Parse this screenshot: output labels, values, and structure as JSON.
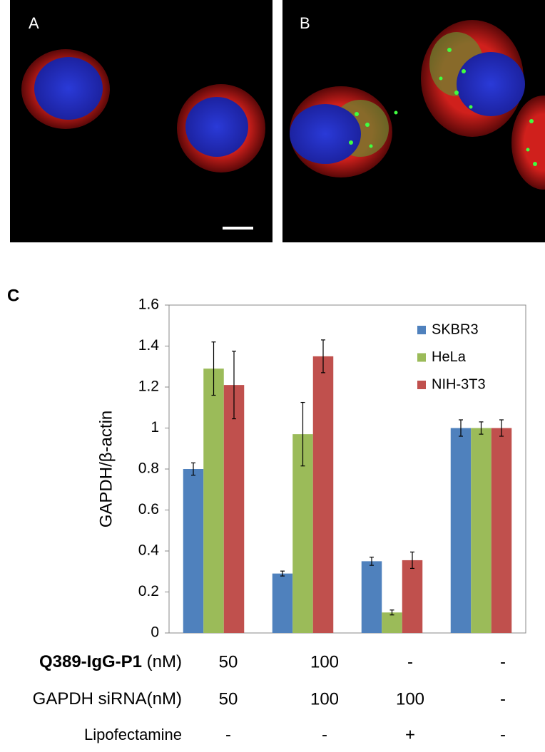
{
  "panels": {
    "a_label": "A",
    "b_label": "B"
  },
  "chart_data": {
    "type": "bar",
    "panel_label": "C",
    "ylabel": "GAPDH/β-actin",
    "categories": [
      null,
      null,
      null,
      null
    ],
    "ylim": [
      0,
      1.6
    ],
    "yticks": [
      0,
      0.2,
      0.4,
      0.6,
      0.8,
      1,
      1.2,
      1.4,
      1.6
    ],
    "grid": false,
    "legend": "upper right",
    "series": [
      {
        "name": "SKBR3",
        "color": "#4f81bd",
        "values": [
          0.8,
          0.29,
          0.35,
          1.0
        ],
        "errors": [
          0.03,
          0.012,
          0.02,
          0.04
        ]
      },
      {
        "name": "HeLa",
        "color": "#9bbb59",
        "values": [
          1.29,
          0.97,
          0.1,
          1.0
        ],
        "errors": [
          0.13,
          0.155,
          0.012,
          0.03
        ]
      },
      {
        "name": "NIH-3T3",
        "color": "#c0504d",
        "values": [
          1.21,
          1.35,
          0.355,
          1.0
        ],
        "errors": [
          0.165,
          0.08,
          0.04,
          0.04
        ]
      }
    ],
    "conditions": [
      {
        "label_bold": "Q389-IgG-P1",
        "label": "(nM)",
        "values": [
          "50",
          "100",
          "-",
          "-"
        ]
      },
      {
        "label": "GAPDH siRNA(nM)",
        "values": [
          "50",
          "100",
          "100",
          "-"
        ]
      },
      {
        "label": "Lipofectamine",
        "values": [
          "-",
          "-",
          "+",
          "-"
        ]
      }
    ]
  }
}
